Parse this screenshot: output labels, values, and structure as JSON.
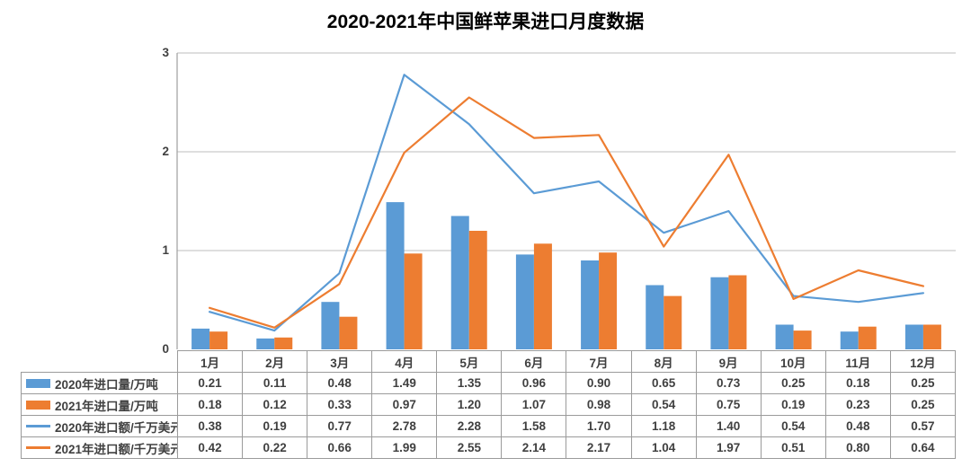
{
  "title": "2020-2021年中国鲜苹果进口月度数据",
  "colors": {
    "blue": "#5B9BD5",
    "orange": "#ED7D31",
    "gridline": "#C9C9C9",
    "axis": "#A6A6A6",
    "text": "#404040"
  },
  "chart_data": {
    "type": "combo",
    "title": "2020-2021年中国鲜苹果进口月度数据",
    "categories": [
      "1月",
      "2月",
      "3月",
      "4月",
      "5月",
      "6月",
      "7月",
      "8月",
      "9月",
      "10月",
      "11月",
      "12月"
    ],
    "series": [
      {
        "name": "2020年进口量/万吨",
        "type": "bar",
        "color": "#5B9BD5",
        "values": [
          0.21,
          0.11,
          0.48,
          1.49,
          1.35,
          0.96,
          0.9,
          0.65,
          0.73,
          0.25,
          0.18,
          0.25
        ]
      },
      {
        "name": "2021年进口量/万吨",
        "type": "bar",
        "color": "#ED7D31",
        "values": [
          0.18,
          0.12,
          0.33,
          0.97,
          1.2,
          1.07,
          0.98,
          0.54,
          0.75,
          0.19,
          0.23,
          0.25
        ]
      },
      {
        "name": "2020年进口额/千万美元",
        "type": "line",
        "color": "#5B9BD5",
        "values": [
          0.38,
          0.19,
          0.77,
          2.78,
          2.28,
          1.58,
          1.7,
          1.18,
          1.4,
          0.54,
          0.48,
          0.57
        ]
      },
      {
        "name": "2021年进口额/千万美元",
        "type": "line",
        "color": "#ED7D31",
        "values": [
          0.42,
          0.22,
          0.66,
          1.99,
          2.55,
          2.14,
          2.17,
          1.04,
          1.97,
          0.51,
          0.8,
          0.64
        ]
      }
    ],
    "ylim": [
      0,
      3
    ],
    "yticks": [
      "0",
      "1",
      "2",
      "3"
    ],
    "grid": true,
    "legend_position": "table-left"
  },
  "table": {
    "col_headers": [
      "1月",
      "2月",
      "3月",
      "4月",
      "5月",
      "6月",
      "7月",
      "8月",
      "9月",
      "10月",
      "11月",
      "12月"
    ],
    "rows": [
      {
        "label": "2020年进口量/万吨",
        "swatch": "bar",
        "color": "#5B9BD5",
        "values": [
          "0.21",
          "0.11",
          "0.48",
          "1.49",
          "1.35",
          "0.96",
          "0.90",
          "0.65",
          "0.73",
          "0.25",
          "0.18",
          "0.25"
        ]
      },
      {
        "label": "2021年进口量/万吨",
        "swatch": "bar",
        "color": "#ED7D31",
        "values": [
          "0.18",
          "0.12",
          "0.33",
          "0.97",
          "1.20",
          "1.07",
          "0.98",
          "0.54",
          "0.75",
          "0.19",
          "0.23",
          "0.25"
        ]
      },
      {
        "label": "2020年进口额/千万美元",
        "swatch": "line",
        "color": "#5B9BD5",
        "values": [
          "0.38",
          "0.19",
          "0.77",
          "2.78",
          "2.28",
          "1.58",
          "1.70",
          "1.18",
          "1.40",
          "0.54",
          "0.48",
          "0.57"
        ]
      },
      {
        "label": "2021年进口额/千万美元",
        "swatch": "line",
        "color": "#ED7D31",
        "values": [
          "0.42",
          "0.22",
          "0.66",
          "1.99",
          "2.55",
          "2.14",
          "2.17",
          "1.04",
          "1.97",
          "0.51",
          "0.80",
          "0.64"
        ]
      }
    ]
  }
}
